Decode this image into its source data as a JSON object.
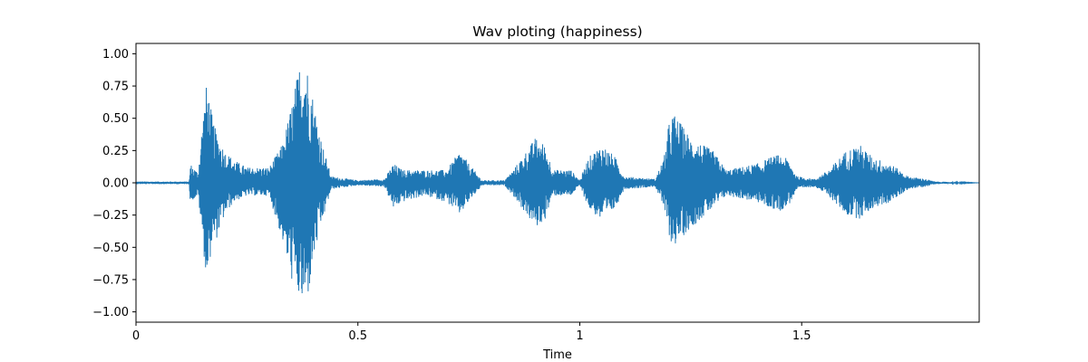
{
  "chart_data": {
    "type": "line",
    "title": "Wav ploting (happiness)",
    "xlabel": "Time",
    "ylabel": "",
    "xlim": [
      0,
      1.9
    ],
    "ylim": [
      -1.08,
      1.08
    ],
    "xticks": [
      0,
      0.5,
      1,
      1.5
    ],
    "xtick_labels": [
      "0",
      "0.5",
      "1",
      "1.5"
    ],
    "yticks": [
      1.0,
      0.75,
      0.5,
      0.25,
      0.0,
      -0.25,
      -0.5,
      -0.75,
      -1.0
    ],
    "ytick_labels": [
      "1.00",
      "0.75",
      "0.50",
      "0.25",
      "0.00",
      "−0.25",
      "−0.50",
      "−0.75",
      "−1.00"
    ],
    "grid": false,
    "legend": "none",
    "line_color": "#1f77b4",
    "series": [
      {
        "envelope_upper": [
          [
            0,
            0.01
          ],
          [
            0.12,
            0.01
          ],
          [
            0.122,
            0.15
          ],
          [
            0.14,
            0.08
          ],
          [
            0.15,
            0.5
          ],
          [
            0.16,
            0.8
          ],
          [
            0.17,
            0.55
          ],
          [
            0.18,
            0.4
          ],
          [
            0.2,
            0.25
          ],
          [
            0.22,
            0.18
          ],
          [
            0.25,
            0.12
          ],
          [
            0.3,
            0.12
          ],
          [
            0.33,
            0.3
          ],
          [
            0.35,
            0.6
          ],
          [
            0.37,
            0.95
          ],
          [
            0.38,
            0.98
          ],
          [
            0.39,
            0.85
          ],
          [
            0.4,
            0.65
          ],
          [
            0.42,
            0.3
          ],
          [
            0.44,
            0.05
          ],
          [
            0.5,
            0.02
          ],
          [
            0.56,
            0.03
          ],
          [
            0.58,
            0.15
          ],
          [
            0.6,
            0.1
          ],
          [
            0.65,
            0.1
          ],
          [
            0.7,
            0.1
          ],
          [
            0.73,
            0.25
          ],
          [
            0.75,
            0.15
          ],
          [
            0.78,
            0.02
          ],
          [
            0.83,
            0.02
          ],
          [
            0.85,
            0.1
          ],
          [
            0.87,
            0.2
          ],
          [
            0.9,
            0.35
          ],
          [
            0.92,
            0.3
          ],
          [
            0.94,
            0.1
          ],
          [
            0.98,
            0.1
          ],
          [
            1.0,
            0.02
          ],
          [
            1.02,
            0.2
          ],
          [
            1.05,
            0.3
          ],
          [
            1.08,
            0.2
          ],
          [
            1.1,
            0.05
          ],
          [
            1.17,
            0.03
          ],
          [
            1.19,
            0.2
          ],
          [
            1.2,
            0.45
          ],
          [
            1.21,
            0.55
          ],
          [
            1.25,
            0.35
          ],
          [
            1.3,
            0.25
          ],
          [
            1.33,
            0.1
          ],
          [
            1.36,
            0.12
          ],
          [
            1.4,
            0.15
          ],
          [
            1.43,
            0.2
          ],
          [
            1.45,
            0.22
          ],
          [
            1.47,
            0.18
          ],
          [
            1.49,
            0.05
          ],
          [
            1.53,
            0.03
          ],
          [
            1.56,
            0.1
          ],
          [
            1.6,
            0.25
          ],
          [
            1.63,
            0.3
          ],
          [
            1.66,
            0.2
          ],
          [
            1.7,
            0.15
          ],
          [
            1.74,
            0.05
          ],
          [
            1.78,
            0.03
          ],
          [
            1.8,
            0.01
          ],
          [
            1.9,
            0.0
          ]
        ],
        "envelope_lower": [
          [
            0,
            -0.01
          ],
          [
            0.12,
            -0.01
          ],
          [
            0.122,
            -0.15
          ],
          [
            0.14,
            -0.1
          ],
          [
            0.15,
            -0.45
          ],
          [
            0.16,
            -0.8
          ],
          [
            0.17,
            -0.5
          ],
          [
            0.18,
            -0.45
          ],
          [
            0.2,
            -0.25
          ],
          [
            0.22,
            -0.15
          ],
          [
            0.25,
            -0.1
          ],
          [
            0.3,
            -0.1
          ],
          [
            0.33,
            -0.45
          ],
          [
            0.35,
            -0.75
          ],
          [
            0.37,
            -0.93
          ],
          [
            0.38,
            -0.98
          ],
          [
            0.39,
            -0.85
          ],
          [
            0.4,
            -0.6
          ],
          [
            0.42,
            -0.3
          ],
          [
            0.44,
            -0.05
          ],
          [
            0.5,
            -0.02
          ],
          [
            0.56,
            -0.03
          ],
          [
            0.58,
            -0.2
          ],
          [
            0.6,
            -0.15
          ],
          [
            0.65,
            -0.1
          ],
          [
            0.7,
            -0.15
          ],
          [
            0.73,
            -0.25
          ],
          [
            0.75,
            -0.15
          ],
          [
            0.78,
            -0.02
          ],
          [
            0.83,
            -0.02
          ],
          [
            0.85,
            -0.1
          ],
          [
            0.87,
            -0.2
          ],
          [
            0.9,
            -0.35
          ],
          [
            0.92,
            -0.3
          ],
          [
            0.94,
            -0.1
          ],
          [
            0.98,
            -0.1
          ],
          [
            1.0,
            -0.02
          ],
          [
            1.02,
            -0.2
          ],
          [
            1.05,
            -0.3
          ],
          [
            1.08,
            -0.2
          ],
          [
            1.1,
            -0.05
          ],
          [
            1.17,
            -0.03
          ],
          [
            1.19,
            -0.2
          ],
          [
            1.2,
            -0.4
          ],
          [
            1.21,
            -0.5
          ],
          [
            1.25,
            -0.35
          ],
          [
            1.3,
            -0.2
          ],
          [
            1.33,
            -0.1
          ],
          [
            1.36,
            -0.12
          ],
          [
            1.4,
            -0.15
          ],
          [
            1.43,
            -0.2
          ],
          [
            1.45,
            -0.22
          ],
          [
            1.47,
            -0.18
          ],
          [
            1.49,
            -0.05
          ],
          [
            1.53,
            -0.03
          ],
          [
            1.56,
            -0.1
          ],
          [
            1.6,
            -0.25
          ],
          [
            1.63,
            -0.28
          ],
          [
            1.66,
            -0.2
          ],
          [
            1.7,
            -0.15
          ],
          [
            1.74,
            -0.05
          ],
          [
            1.78,
            -0.03
          ],
          [
            1.8,
            -0.01
          ],
          [
            1.9,
            0.0
          ]
        ]
      }
    ]
  }
}
